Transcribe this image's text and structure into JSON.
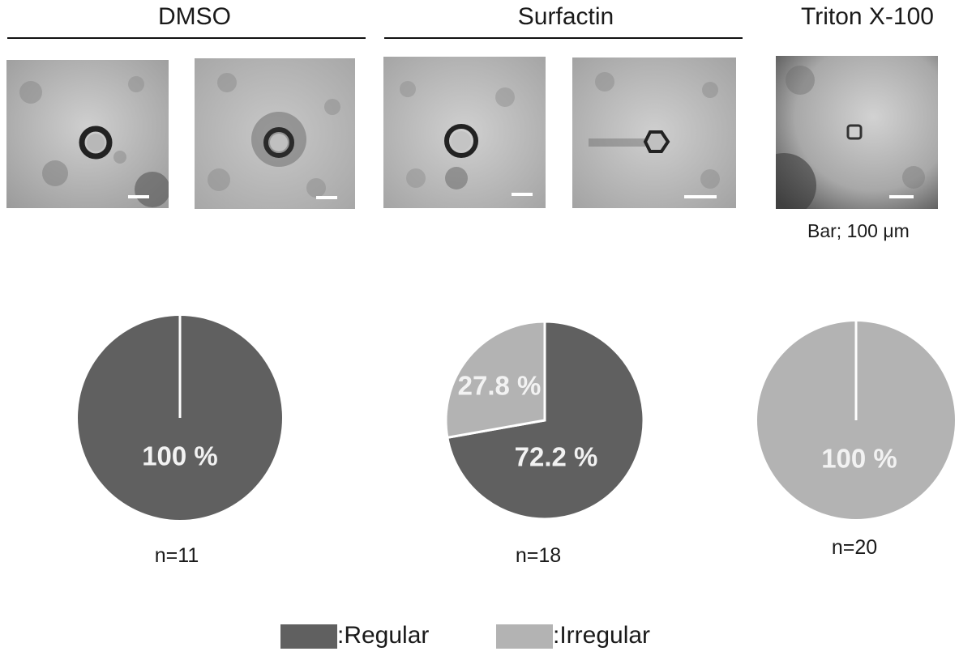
{
  "headers": {
    "dmso": "DMSO",
    "surfactin": "Surfactin",
    "triton": "Triton X-100"
  },
  "scale_bar_label": "Bar; 100 μm",
  "colors": {
    "regular": "#606060",
    "irregular": "#b3b3b3",
    "label_on_pie": "#f2f2f2"
  },
  "chart_data": [
    {
      "type": "pie",
      "title": "",
      "categories": [
        "Regular",
        "Irregular"
      ],
      "values": [
        100,
        0
      ],
      "labels": [
        "100 %",
        ""
      ],
      "n_label": "n=11"
    },
    {
      "type": "pie",
      "title": "",
      "categories": [
        "Regular",
        "Irregular"
      ],
      "values": [
        72.2,
        27.8
      ],
      "labels": [
        "72.2 %",
        "27.8 %"
      ],
      "n_label": "n=18"
    },
    {
      "type": "pie",
      "title": "",
      "categories": [
        "Regular",
        "Irregular"
      ],
      "values": [
        0,
        100
      ],
      "labels": [
        "",
        "100 %"
      ],
      "n_label": "n=20"
    }
  ],
  "legend": {
    "regular_label": ":Regular",
    "irregular_label": ":Irregular"
  }
}
